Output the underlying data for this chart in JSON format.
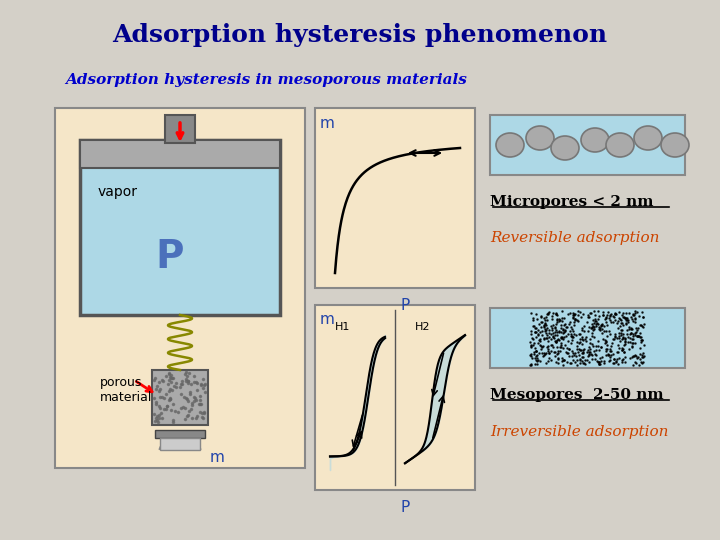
{
  "title": "Adsorption hysteresis phenomenon",
  "subtitle": "Adsorption hysteresis in mesoporous materials",
  "bg_color": "#d4d0c8",
  "panel_bg": "#f5e6c8",
  "light_blue": "#add8e6",
  "dark_blue": "#00008b",
  "orange_red": "#cc4400",
  "gray_bg": "#c8c8c8",
  "micropores_label": "Micropores < 2 nm",
  "mesopores_label": "Mesopores  2-50 nm",
  "reversible_label": "Reversible adsorption",
  "irreversible_label": "Irreversible adsorption",
  "vapor_label": "vapor",
  "P_label": "P",
  "m_label": "m",
  "porous_material_label": "porous\nmaterial",
  "H1_label": "H1",
  "H2_label": "H2"
}
